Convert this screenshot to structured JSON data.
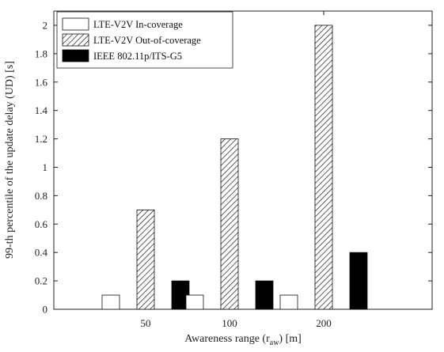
{
  "chart_data": {
    "type": "bar",
    "categories": [
      "50",
      "100",
      "200"
    ],
    "series": [
      {
        "name": "LTE-V2V In-coverage",
        "values": [
          0.1,
          0.1,
          0.1
        ],
        "fill": "white"
      },
      {
        "name": "LTE-V2V Out-of-coverage",
        "values": [
          0.7,
          1.2,
          2.0
        ],
        "fill": "hatched"
      },
      {
        "name": "IEEE 802.11p/ITS-G5",
        "values": [
          0.2,
          0.2,
          0.4
        ],
        "fill": "black"
      }
    ],
    "xlabel": {
      "prefix": "Awareness range (r",
      "subscript": "aw",
      "suffix": ") [m]"
    },
    "ylabel": "99-th percentile of the update delay (UD) [s]",
    "ylim": [
      0,
      2.1
    ],
    "yticks": [
      "0",
      "0.2",
      "0.4",
      "0.6",
      "0.8",
      "1",
      "1.2",
      "1.4",
      "1.6",
      "1.8",
      "2"
    ],
    "grid": false,
    "legend": "top-left",
    "colors": {
      "axis": "#222222",
      "black_bar": "#000000",
      "white_bar": "#ffffff",
      "hatch": "#333333"
    }
  }
}
